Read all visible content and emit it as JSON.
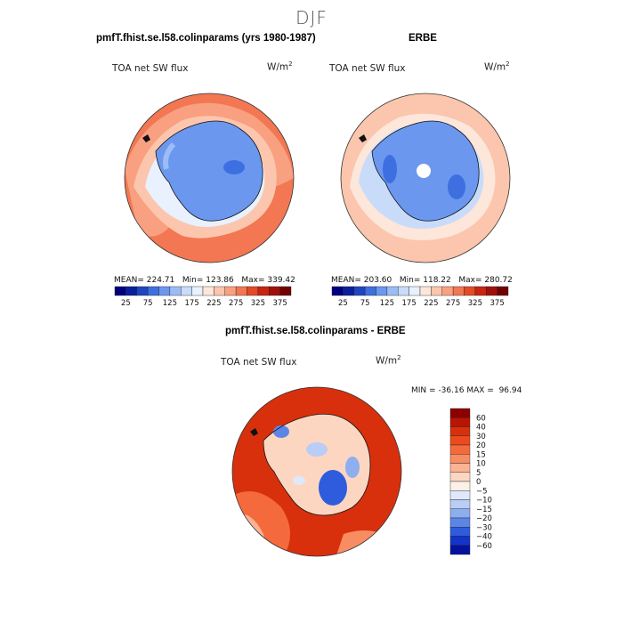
{
  "figure": {
    "title": "DJF"
  },
  "chart_data": [
    {
      "type": "map",
      "title": "pmfT.fhist.se.l58.colinparams (yrs 1980-1987)",
      "field_label": "TOA net SW flux",
      "units": "W/m",
      "units_exp": "2",
      "stats": {
        "mean_label": "MEAN=",
        "mean": "224.71",
        "min_label": "Min=",
        "min": "123.86",
        "max_label": "Max=",
        "max": "339.42"
      },
      "colorbar": {
        "levels": [
          25,
          75,
          125,
          175,
          225,
          275,
          325,
          375
        ],
        "tick_labels": [
          "25",
          "75",
          "125",
          "175",
          "225",
          "275",
          "325",
          "375"
        ],
        "colors": [
          "#00007f",
          "#0a1f9c",
          "#1f45c2",
          "#3e6fe0",
          "#6b97ef",
          "#9bbcf5",
          "#c8dcfa",
          "#e8f1fd",
          "#fde6da",
          "#fbc6ad",
          "#f8a080",
          "#f27752",
          "#e44a26",
          "#c92312",
          "#a0100a",
          "#730000"
        ]
      }
    },
    {
      "type": "map",
      "title": "ERBE",
      "field_label": "TOA net SW flux",
      "units": "W/m",
      "units_exp": "2",
      "stats": {
        "mean_label": "MEAN=",
        "mean": "203.60",
        "min_label": "Min=",
        "min": "118.22",
        "max_label": "Max=",
        "max": "280.72"
      },
      "colorbar": {
        "levels": [
          25,
          75,
          125,
          175,
          225,
          275,
          325,
          375
        ],
        "tick_labels": [
          "25",
          "75",
          "125",
          "175",
          "225",
          "275",
          "325",
          "375"
        ],
        "colors": [
          "#00007f",
          "#0a1f9c",
          "#1f45c2",
          "#3e6fe0",
          "#6b97ef",
          "#9bbcf5",
          "#c8dcfa",
          "#e8f1fd",
          "#fde6da",
          "#fbc6ad",
          "#f8a080",
          "#f27752",
          "#e44a26",
          "#c92312",
          "#a0100a",
          "#730000"
        ]
      }
    },
    {
      "type": "map",
      "title": "pmfT.fhist.se.l58.colinparams - ERBE",
      "field_label": "TOA net SW flux",
      "units": "W/m",
      "units_exp": "2",
      "stats": {
        "min_label": "MIN =",
        "min": "-36.16",
        "max_label": "MAX =",
        "max": "96.94"
      },
      "colorbar": {
        "orientation": "vertical",
        "tick_labels": [
          "60",
          "40",
          "30",
          "20",
          "15",
          "10",
          "5",
          "0",
          "−5",
          "−10",
          "−15",
          "−20",
          "−30",
          "−40",
          "−60"
        ],
        "colors": [
          "#8b0000",
          "#b81505",
          "#d8300c",
          "#ea4a1e",
          "#f46a3c",
          "#f98d62",
          "#fcb294",
          "#fdd6c2",
          "#fdf0e6",
          "#dfe9fb",
          "#b9cdf5",
          "#8daeef",
          "#5c86e6",
          "#2f5cdc",
          "#1433c8",
          "#04129e"
        ]
      }
    }
  ]
}
